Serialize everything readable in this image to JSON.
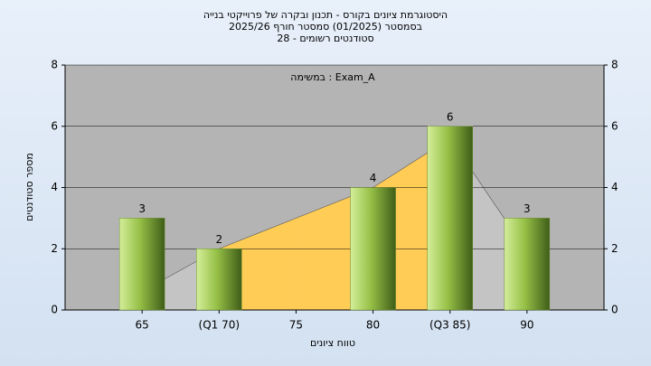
{
  "chart_data": {
    "type": "bar",
    "title": "היסטוגרמת ציונים בקורס - תכנון ובקרה של פרוייקטי בנייה",
    "subtitle": "בסמסטר  (01/2025)  סמסטר חורף 2025/26",
    "subtitle2": "סטודנטים רשומים - 28",
    "annotation": "במשימה : Exam_A",
    "x_label": "טווח ציונים",
    "y_label": "מספר סטודנטים",
    "categories": [
      "65",
      "(Q1 70)",
      "75",
      "80",
      "(Q3 85)",
      "90"
    ],
    "values": [
      3,
      2,
      0,
      4,
      6,
      3
    ],
    "value_labels": [
      "3",
      "2",
      null,
      "4",
      "6",
      "3"
    ],
    "color": "#8cb43c",
    "area_values": [
      0.6,
      2,
      3,
      4,
      5.6,
      1.9
    ],
    "area_colors": [
      "#c4c4c4",
      "#ffcc55",
      "#ffcc55",
      "#ffcc55",
      "#c4c4c4"
    ],
    "ylim": [
      0,
      8
    ],
    "yticks": [
      0,
      2,
      4,
      6,
      8
    ],
    "y2lim": [
      0,
      8
    ],
    "y2ticks": [
      0,
      2,
      4,
      6,
      8
    ],
    "grid": true
  }
}
